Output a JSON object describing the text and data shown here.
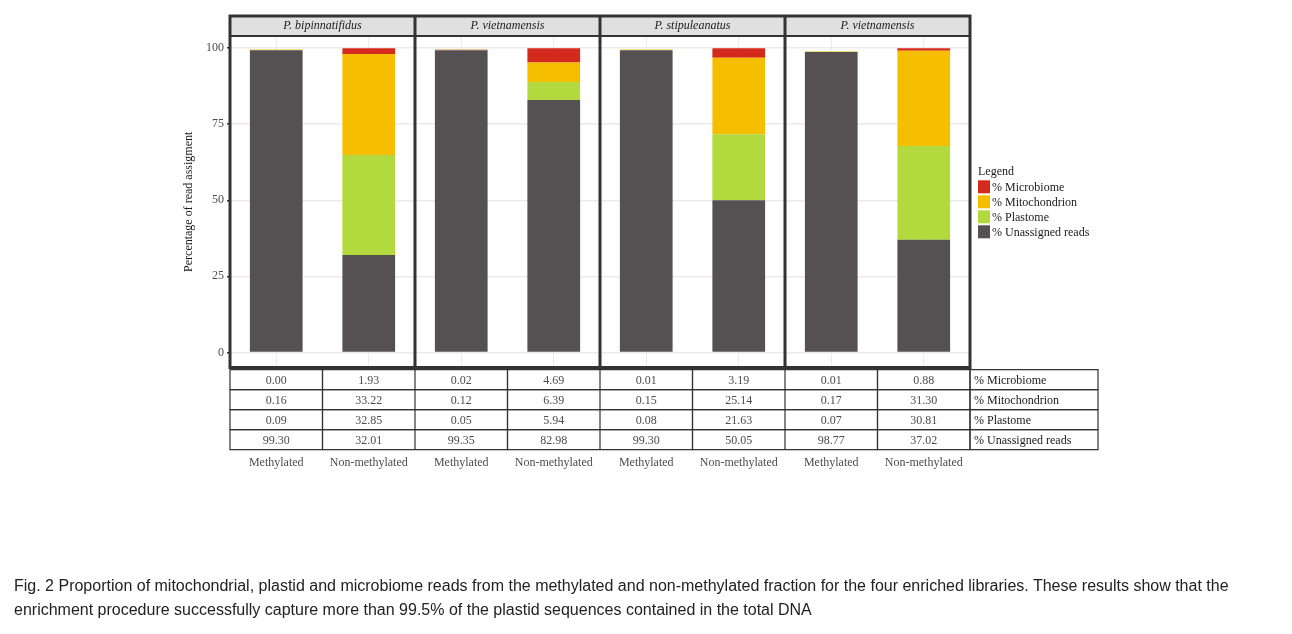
{
  "chart_data": [
    {
      "type": "bar",
      "title": "P. bipinnatifidus",
      "ylabel": "Percentage of read assigment",
      "categories": [
        "Methylated",
        "Non-methylated"
      ],
      "stacked": true,
      "ylim": [
        -5,
        104
      ],
      "yticks": [
        0,
        25,
        50,
        75,
        100
      ],
      "grid": true,
      "annotations": [
        "Fig. 2 Proportion of mitochondrial, plastid and microbiome reads from the methylated and non-methylated fraction for the four enriched libraries. These results show that the enrichment procedure successfully capture more than 99.5% of the plastid sequences contained in the total DNA"
      ],
      "series": [
        {
          "color": "#555152",
          "values": [
            99.3,
            32.01
          ],
          "value_labels": [
            "99.30",
            "32.01"
          ]
        },
        {
          "color": "#b2d93d",
          "values": [
            0.09,
            32.85
          ],
          "value_labels": [
            "0.09",
            "32.85"
          ]
        },
        {
          "color": "#f5bf00",
          "values": [
            0.16,
            33.22
          ],
          "value_labels": [
            "0.16",
            "33.22"
          ]
        },
        {
          "color": "#d42a1d",
          "values": [
            0,
            1.93
          ],
          "value_labels": [
            "0.00",
            "1.93"
          ]
        }
      ]
    },
    {
      "type": "bar",
      "title": "P. vietnamensis",
      "categories": [
        "Methylated",
        "Non-methylated"
      ],
      "stacked": true,
      "ylim": [
        -5,
        104
      ],
      "yticks": [
        0,
        25,
        50,
        75,
        100
      ],
      "grid": true,
      "tick_labels": "x",
      "series": [
        {
          "color": "#555152",
          "values": [
            99.35,
            82.98
          ],
          "value_labels": [
            "99.35",
            "82.98"
          ]
        },
        {
          "color": "#b2d93d",
          "values": [
            0.05,
            5.94
          ],
          "value_labels": [
            "0.05",
            "5.94"
          ]
        },
        {
          "color": "#f5bf00",
          "values": [
            0.12,
            6.39
          ],
          "value_labels": [
            "0.12",
            "6.39"
          ]
        },
        {
          "color": "#d42a1d",
          "values": [
            0.02,
            4.69
          ],
          "value_labels": [
            "0.02",
            "4.69"
          ]
        }
      ]
    },
    {
      "type": "bar",
      "title": "P. stipuleanatus",
      "categories": [
        "Methylated",
        "Non-methylated"
      ],
      "stacked": true,
      "ylim": [
        -5,
        104
      ],
      "yticks": [
        0,
        25,
        50,
        75,
        100
      ],
      "grid": true,
      "tick_labels": "x",
      "series": [
        {
          "color": "#555152",
          "values": [
            99.3,
            50.05
          ],
          "value_labels": [
            "99.30",
            "50.05"
          ]
        },
        {
          "color": "#b2d93d",
          "values": [
            0.08,
            21.63
          ],
          "value_labels": [
            "0.08",
            "21.63"
          ]
        },
        {
          "color": "#f5bf00",
          "values": [
            0.15,
            25.14
          ],
          "value_labels": [
            "0.15",
            "25.14"
          ]
        },
        {
          "color": "#d42a1d",
          "values": [
            0.01,
            3.19
          ],
          "value_labels": [
            "0.01",
            "3.19"
          ]
        }
      ]
    },
    {
      "type": "bar",
      "title": "P. vietnamensis",
      "categories": [
        "Methylated",
        "Non-methylated"
      ],
      "stacked": true,
      "ylim": [
        -5,
        104
      ],
      "yticks": [
        0,
        25,
        50,
        75,
        100
      ],
      "grid": true,
      "tick_labels": "x",
      "legend": "right",
      "legend_title": "Legend",
      "series": [
        {
          "name": "% Unassigned reads",
          "color": "#555152",
          "values": [
            98.77,
            37.02
          ],
          "value_labels": [
            "98.77",
            "37.02"
          ]
        },
        {
          "name": "% Plastome",
          "color": "#b2d93d",
          "values": [
            0.07,
            30.81
          ],
          "value_labels": [
            "0.07",
            "30.81"
          ]
        },
        {
          "name": "% Mitochondrion",
          "color": "#f5bf00",
          "values": [
            0.17,
            31.3
          ],
          "value_labels": [
            "0.17",
            "31.30"
          ]
        },
        {
          "name": "% Microbiome",
          "color": "#d42a1d",
          "values": [
            0.01,
            0.88
          ],
          "value_labels": [
            "0.01",
            "0.88"
          ]
        }
      ]
    }
  ]
}
